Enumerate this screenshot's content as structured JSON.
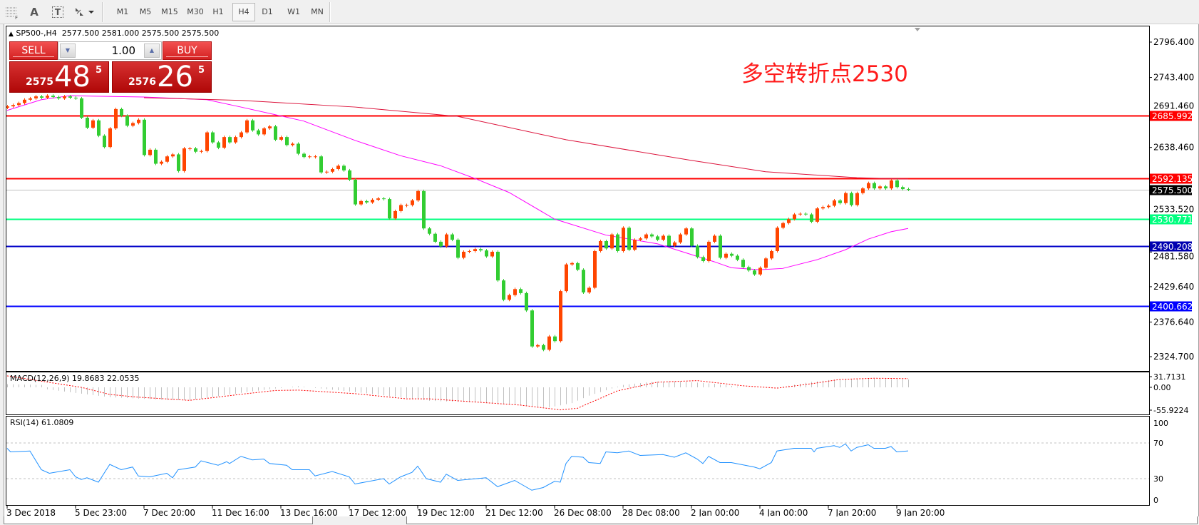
{
  "toolbar": {
    "icons": [
      "period-separator-icon",
      "text-icon",
      "text-label-icon",
      "arrows-icon"
    ],
    "text_icon_label": "A",
    "text_label_icon_label": "T",
    "timeframes": [
      "M1",
      "M5",
      "M15",
      "M30",
      "H1",
      "H4",
      "D1",
      "W1",
      "MN"
    ],
    "selected_timeframe": "H4"
  },
  "header": {
    "marker": "▲",
    "symbol": "SP500-,H4",
    "ohlc": "2577.500 2581.000 2575.500 2575.500"
  },
  "trade_panel": {
    "sell_label": "SELL",
    "buy_label": "BUY",
    "lot_value": "1.00",
    "sell_price": {
      "prefix": "2575",
      "big": "48",
      "sup": "5"
    },
    "buy_price": {
      "prefix": "2576",
      "big": "26",
      "sup": "5"
    }
  },
  "annotation": {
    "text": "多空转折点2530",
    "color": "#ff1a1a"
  },
  "colors": {
    "bull_candle": "#ff4500",
    "bear_candle": "#32cd32",
    "ma_fast": "#ff00ff",
    "ma_slow": "#dc143c",
    "macd_histogram": "#c0c0c0",
    "macd_signal": "#ff0000",
    "rsi_line": "#1e90ff"
  },
  "chart_data": [
    {
      "type": "candlestick",
      "symbol": "SP500-",
      "timeframe": "H4",
      "ylim": [
        2324.7,
        2796.4
      ],
      "grid": false,
      "y_tick_labels": [
        "2796.400",
        "2743.400",
        "2691.460",
        "2638.460",
        "2533.520",
        "2481.580",
        "2429.640",
        "2376.640",
        "2324.700"
      ],
      "x_tick_labels": [
        "3 Dec 2018",
        "5 Dec 23:00",
        "7 Dec 20:00",
        "11 Dec 16:00",
        "13 Dec 16:00",
        "17 Dec 12:00",
        "19 Dec 12:00",
        "21 Dec 12:00",
        "26 Dec 08:00",
        "28 Dec 08:00",
        "2 Jan 00:00",
        "4 Jan 00:00",
        "7 Jan 20:00",
        "9 Jan 20:00"
      ],
      "bars_per_x_tick": 12,
      "first_open": 2698,
      "closes": [
        2700,
        2702,
        2705,
        2710,
        2712,
        2715,
        2713,
        2716,
        2714,
        2712,
        2715,
        2713,
        2712,
        2683,
        2668,
        2679,
        2656,
        2639,
        2667,
        2696,
        2686,
        2671,
        2675,
        2680,
        2627,
        2635,
        2614,
        2617,
        2625,
        2628,
        2603,
        2637,
        2637,
        2632,
        2633,
        2661,
        2646,
        2638,
        2654,
        2646,
        2654,
        2661,
        2679,
        2664,
        2658,
        2667,
        2670,
        2650,
        2654,
        2642,
        2644,
        2629,
        2624,
        2625,
        2625,
        2601,
        2602,
        2606,
        2611,
        2604,
        2590,
        2553,
        2558,
        2556,
        2560,
        2562,
        2561,
        2532,
        2543,
        2552,
        2552,
        2559,
        2573,
        2517,
        2509,
        2497,
        2490,
        2508,
        2500,
        2473,
        2482,
        2483,
        2486,
        2484,
        2475,
        2482,
        2439,
        2410,
        2417,
        2426,
        2420,
        2394,
        2340,
        2342,
        2335,
        2355,
        2348,
        2423,
        2463,
        2465,
        2455,
        2421,
        2428,
        2483,
        2498,
        2487,
        2508,
        2483,
        2518,
        2485,
        2500,
        2502,
        2508,
        2505,
        2500,
        2506,
        2491,
        2496,
        2508,
        2517,
        2491,
        2474,
        2468,
        2497,
        2506,
        2473,
        2479,
        2476,
        2470,
        2459,
        2454,
        2448,
        2458,
        2472,
        2483,
        2518,
        2525,
        2531,
        2538,
        2539,
        2538,
        2527,
        2547,
        2549,
        2551,
        2559,
        2555,
        2570,
        2552,
        2570,
        2577,
        2585,
        2577,
        2580,
        2577,
        2589,
        2579,
        2576,
        2575.5
      ],
      "moving_averages": [
        {
          "color": "#ff00ff",
          "points": [
            [
              0,
              2694
            ],
            [
              6,
              2710
            ],
            [
              11,
              2716
            ],
            [
              24,
              2714
            ],
            [
              35,
              2710
            ],
            [
              41,
              2699
            ],
            [
              52,
              2678
            ],
            [
              61,
              2649
            ],
            [
              69,
              2626
            ],
            [
              76,
              2611
            ],
            [
              82,
              2592
            ],
            [
              88,
              2571
            ],
            [
              96,
              2531
            ],
            [
              105,
              2507
            ],
            [
              114,
              2494
            ],
            [
              124,
              2467
            ],
            [
              127,
              2458
            ],
            [
              132,
              2455
            ],
            [
              136,
              2457
            ],
            [
              142,
              2470
            ],
            [
              147,
              2485
            ],
            [
              151,
              2501
            ],
            [
              155,
              2512
            ],
            [
              158,
              2517
            ]
          ]
        },
        {
          "color": "#dc143c",
          "points": [
            [
              24,
              2713
            ],
            [
              41,
              2709
            ],
            [
              61,
              2699
            ],
            [
              79,
              2685
            ],
            [
              98,
              2650
            ],
            [
              120,
              2619
            ],
            [
              133,
              2602
            ],
            [
              149,
              2593
            ],
            [
              158,
              2591
            ]
          ]
        }
      ],
      "horizontal_lines": [
        {
          "value": "2685.992",
          "color": "#ff0000",
          "text_color": "#ffffff"
        },
        {
          "value": "2592.135",
          "color": "#ff0000",
          "text_color": "#ffffff"
        },
        {
          "value": "2575.500",
          "color": "#c0c0c0",
          "box_color": "#000000",
          "text_color": "#ffffff"
        },
        {
          "value": "2530.771",
          "color": "#00ff7f",
          "text_color": "#ffffff"
        },
        {
          "value": "2490.208",
          "color": "#0000c8",
          "box_color": "#0000b0",
          "text_color": "#ffffff"
        },
        {
          "value": "2400.662",
          "color": "#0000ff",
          "text_color": "#ffffff"
        }
      ]
    },
    {
      "type": "bar",
      "title": "MACD(12,26,9) 19.8683 22.0535",
      "ylim": [
        -55.9224,
        31.7131
      ],
      "y_tick_labels": [
        "31.7131",
        "0.00",
        "-55.9224"
      ],
      "histogram_points": [
        [
          0,
          8
        ],
        [
          6,
          6
        ],
        [
          7,
          -5
        ],
        [
          13,
          -16
        ],
        [
          18,
          -25
        ],
        [
          27,
          -31
        ],
        [
          32,
          -33
        ],
        [
          42,
          -12
        ],
        [
          47,
          -3
        ],
        [
          51,
          3
        ],
        [
          61,
          -12
        ],
        [
          70,
          -27
        ],
        [
          74,
          -34
        ],
        [
          85,
          -40
        ],
        [
          95,
          -51
        ],
        [
          99,
          -40
        ],
        [
          102,
          -21
        ],
        [
          106,
          -3
        ],
        [
          108,
          6
        ],
        [
          113,
          14
        ],
        [
          118,
          15
        ],
        [
          124,
          9
        ],
        [
          129,
          0
        ],
        [
          135,
          -1
        ],
        [
          141,
          14
        ],
        [
          146,
          21
        ],
        [
          152,
          22
        ],
        [
          158,
          19.87
        ]
      ],
      "signal_points": [
        [
          0,
          29
        ],
        [
          13,
          0
        ],
        [
          18,
          -18
        ],
        [
          23,
          -25
        ],
        [
          32,
          -33
        ],
        [
          42,
          -16
        ],
        [
          47,
          -8
        ],
        [
          51,
          -7
        ],
        [
          61,
          -16
        ],
        [
          70,
          -29
        ],
        [
          74,
          -29
        ],
        [
          90,
          -45
        ],
        [
          97,
          -57
        ],
        [
          100,
          -53
        ],
        [
          107,
          -9
        ],
        [
          114,
          13
        ],
        [
          121,
          17
        ],
        [
          129,
          4
        ],
        [
          135,
          -2
        ],
        [
          141,
          9
        ],
        [
          146,
          20
        ],
        [
          152,
          23
        ],
        [
          158,
          22.05
        ]
      ]
    },
    {
      "type": "line",
      "title": "RSI(14) 61.0809",
      "ylim": [
        0,
        100
      ],
      "levels": [
        70,
        30
      ],
      "y_tick_labels": [
        "100",
        "70",
        "30",
        "0"
      ],
      "points": [
        [
          0,
          64
        ],
        [
          0.6,
          60
        ],
        [
          4,
          61
        ],
        [
          6,
          40
        ],
        [
          7.4,
          36
        ],
        [
          11,
          40
        ],
        [
          12,
          32
        ],
        [
          13,
          29
        ],
        [
          14,
          31
        ],
        [
          16,
          26
        ],
        [
          18,
          46
        ],
        [
          20,
          40
        ],
        [
          22,
          43
        ],
        [
          23,
          33
        ],
        [
          25,
          32
        ],
        [
          28,
          36
        ],
        [
          29,
          31
        ],
        [
          30,
          40
        ],
        [
          33,
          43
        ],
        [
          34,
          50
        ],
        [
          37,
          45
        ],
        [
          38.5,
          49
        ],
        [
          39,
          47
        ],
        [
          41,
          55
        ],
        [
          43,
          51
        ],
        [
          45,
          52
        ],
        [
          46,
          47
        ],
        [
          49,
          45
        ],
        [
          50,
          40
        ],
        [
          53,
          40
        ],
        [
          54,
          33
        ],
        [
          57,
          38
        ],
        [
          60,
          32
        ],
        [
          61,
          24
        ],
        [
          66,
          30
        ],
        [
          67,
          24
        ],
        [
          69,
          32
        ],
        [
          71,
          37
        ],
        [
          72,
          44
        ],
        [
          73.5,
          30
        ],
        [
          76,
          26
        ],
        [
          77,
          35
        ],
        [
          79,
          28
        ],
        [
          84,
          31
        ],
        [
          86,
          21
        ],
        [
          89,
          28
        ],
        [
          92,
          17
        ],
        [
          94,
          20
        ],
        [
          96,
          27
        ],
        [
          97,
          26
        ],
        [
          98,
          47
        ],
        [
          99,
          55
        ],
        [
          101,
          54
        ],
        [
          102,
          48
        ],
        [
          104,
          47
        ],
        [
          105,
          60
        ],
        [
          107,
          59
        ],
        [
          109,
          61
        ],
        [
          111,
          56
        ],
        [
          115,
          57
        ],
        [
          117,
          54
        ],
        [
          119,
          59
        ],
        [
          121,
          52
        ],
        [
          122,
          47
        ],
        [
          123,
          55
        ],
        [
          125,
          48
        ],
        [
          127,
          48
        ],
        [
          131,
          43
        ],
        [
          132,
          41
        ],
        [
          134,
          48
        ],
        [
          135,
          61
        ],
        [
          138,
          64
        ],
        [
          141,
          64
        ],
        [
          141.5,
          60
        ],
        [
          142,
          64
        ],
        [
          145,
          67
        ],
        [
          146,
          65
        ],
        [
          147,
          69
        ],
        [
          148,
          61
        ],
        [
          149,
          65
        ],
        [
          151,
          68
        ],
        [
          152,
          64
        ],
        [
          154,
          64
        ],
        [
          155,
          66
        ],
        [
          156,
          60
        ],
        [
          158,
          61.08
        ]
      ]
    }
  ]
}
